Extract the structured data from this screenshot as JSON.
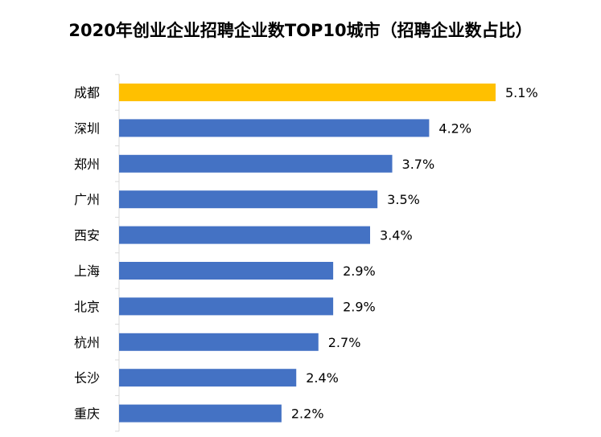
{
  "chart_data": {
    "type": "bar",
    "orientation": "horizontal",
    "title": "2020年创业企业招聘企业数TOP10城市（招聘企业数占比）",
    "categories": [
      "成都",
      "深圳",
      "郑州",
      "广州",
      "西安",
      "上海",
      "北京",
      "杭州",
      "长沙",
      "重庆"
    ],
    "values": [
      5.1,
      4.2,
      3.7,
      3.5,
      3.4,
      2.9,
      2.9,
      2.7,
      2.4,
      2.2
    ],
    "value_labels": [
      "5.1%",
      "4.2%",
      "3.7%",
      "3.5%",
      "3.4%",
      "2.9%",
      "2.9%",
      "2.7%",
      "2.4%",
      "2.2%"
    ],
    "unit": "%",
    "grid": false,
    "legend": "none",
    "colors": {
      "highlight": "#FFC000",
      "default": "#4472C4",
      "axis": "#D9D9D9"
    },
    "highlight_index": 0
  }
}
